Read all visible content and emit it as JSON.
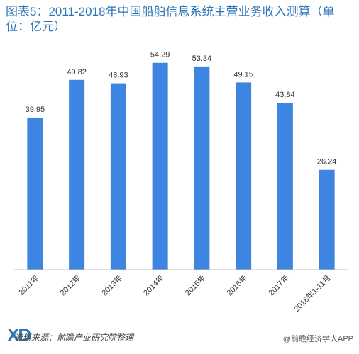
{
  "chart_data": {
    "type": "bar",
    "title": "图表5：2011-2018年中国船舶信息系统主营业务收入测算（单位：亿元）",
    "categories": [
      "2011年",
      "2012年",
      "2013年",
      "2014年",
      "2015年",
      "2016年",
      "2017年",
      "2018年1-11月"
    ],
    "values": [
      39.95,
      49.82,
      48.93,
      54.29,
      53.34,
      49.15,
      43.84,
      26.24
    ],
    "value_labels": [
      "39.95",
      "49.82",
      "48.93",
      "54.29",
      "53.34",
      "49.15",
      "43.84",
      "26.24"
    ],
    "ylim": [
      0,
      60
    ],
    "grid": false,
    "bar_color": "#3d85e0",
    "axis_color": "#bfbfbf"
  },
  "footer": {
    "source": "资料来源：前瞻产业研究院整理",
    "logo_text": "XD",
    "right_text": "@前瞻经济学人APP"
  }
}
